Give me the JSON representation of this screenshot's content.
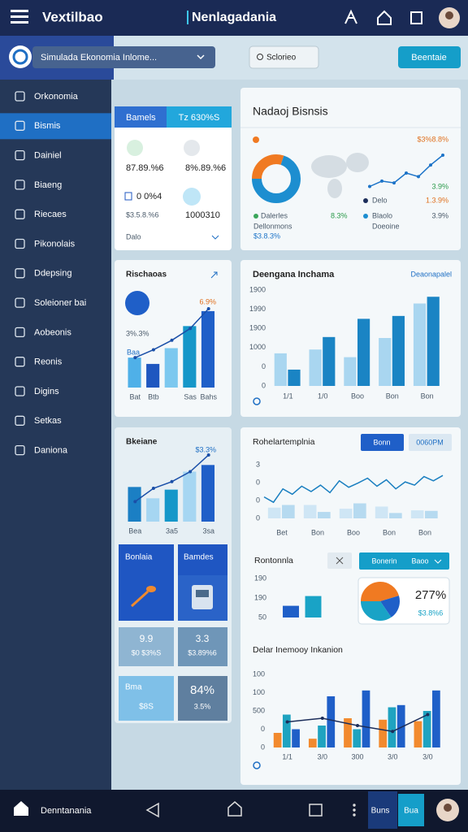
{
  "topbar": {
    "app_name": "Vextilbao",
    "title": "Nenlagadania"
  },
  "toolbar": {
    "dropdown": "Simulada Ekonomia Inlome...",
    "search": "Sclorieo",
    "action": "Beentaie"
  },
  "sidebar": {
    "items": [
      "Orkonomia",
      "Bismis",
      "Dainiel",
      "Biaeng",
      "Riecaes",
      "Pikonolais",
      "Ddepsing",
      "Soleioner bai",
      "Aobeonis",
      "Reonis",
      "Digins",
      "Setkas",
      "Daniona"
    ],
    "active": 1
  },
  "summary": {
    "tabs": [
      "Bamels",
      "Tz 630%S"
    ],
    "stats": [
      "87.89.%6",
      "8%.89.%6",
      "0 0%4",
      "$3.5.8.%6",
      "1000310"
    ],
    "footer": "Dalo"
  },
  "overview": {
    "title": "Nadaoj Bisnsis",
    "headline": "$3%8.8%",
    "donut": {
      "values": [
        30,
        70
      ],
      "colors": [
        "#f07a22",
        "#1d8ed0"
      ]
    },
    "line": {
      "color": "#1d74c8",
      "ylim": [
        0,
        100
      ],
      "values": [
        10,
        22,
        18,
        40,
        32,
        58,
        80
      ]
    },
    "labels": [
      "Dalerles",
      "8.3%",
      "Delo",
      "Blaolo",
      "3.9%",
      "1.3.9%",
      "3.9%",
      "Dellonmons",
      "$3.8.3%",
      "Doeoine"
    ]
  },
  "revenue": {
    "title": "Rischaoas",
    "notes": [
      "6.9%",
      "3%.3%",
      "Baa"
    ],
    "chart": {
      "ylim": [
        0,
        100
      ],
      "categories": [
        "Bat",
        "Btb",
        null,
        "Sas",
        "Bahs"
      ],
      "series": [
        {
          "colors": [
            "#4fb0e8",
            "#1f57c0",
            "#7cc8ef",
            "#1597c9",
            "#1f5fc8"
          ],
          "values": [
            38,
            30,
            50,
            78,
            97
          ]
        }
      ],
      "line": {
        "color": "#1a4fa8",
        "values": [
          38,
          48,
          60,
          75,
          100
        ]
      }
    }
  },
  "income": {
    "title": "Deengana Inchama",
    "link": "Deaonapalel",
    "chart": {
      "ylim": [
        0,
        100
      ],
      "y_labels": [
        "1900",
        "1990",
        "1900",
        "1000",
        "0",
        "0"
      ],
      "categories": [
        "1/1",
        "1/0",
        "Boo",
        "Bon",
        "Bon"
      ],
      "series": [
        {
          "color": "#a9d6f0",
          "values": [
            34,
            38,
            30,
            50,
            86
          ]
        },
        {
          "color": "#1a84c4",
          "values": [
            17,
            51,
            70,
            73,
            93
          ]
        }
      ]
    }
  },
  "trend": {
    "title": "Bkeiane",
    "note": "$3.3%",
    "chart": {
      "ylim": [
        0,
        100
      ],
      "categories": [
        "Bea",
        null,
        "3a5",
        null,
        "3sa"
      ],
      "series": [
        {
          "colors": [
            "#1b7fc4",
            "#a6d6f2",
            "#1597c9",
            "#a6d6f2",
            "#1f5fc8"
          ],
          "values": [
            52,
            35,
            48,
            75,
            85
          ]
        }
      ],
      "line": {
        "color": "#1a4fa8",
        "values": [
          30,
          50,
          60,
          75,
          100
        ]
      }
    }
  },
  "tiles": [
    [
      "Bonlaia"
    ],
    [
      "Bamdes"
    ],
    [
      "9.9",
      "$0 $3%S"
    ],
    [
      "3.3",
      "$3.89%6"
    ],
    [
      "Bma",
      "$8S"
    ],
    [
      "84%",
      "3.5%"
    ]
  ],
  "timeline": {
    "title": "Rohelartemplnia",
    "buttons": [
      "Bonn",
      "0060PM"
    ],
    "chart": {
      "ylim": [
        0,
        100
      ],
      "y_labels": [
        "3",
        "0",
        "0",
        "0"
      ],
      "categories": [
        "Bet",
        "Bon",
        "Boo",
        "Bon",
        "Bon"
      ],
      "series": [
        {
          "color": "#cfe6f5",
          "values": [
            20,
            25,
            18,
            22,
            15
          ]
        },
        {
          "color": "#b6daf0",
          "values": [
            25,
            12,
            28,
            10,
            14
          ]
        }
      ],
      "line": {
        "color": "#1a7fc0",
        "values": [
          40,
          30,
          55,
          45,
          60,
          50,
          62,
          48,
          70,
          58,
          66,
          75,
          60,
          72,
          55,
          68,
          62,
          78,
          70,
          80
        ]
      }
    }
  },
  "breakdown": {
    "title": "Rontonnla",
    "dropdown": [
      "Bonerin",
      "Baoo"
    ],
    "chart": {
      "ylim": [
        0,
        100
      ],
      "y_labels": [
        "190",
        "190",
        "50"
      ],
      "categories": [
        null,
        null
      ],
      "series": [
        {
          "colors": [
            "#1f5fc8",
            "#19a3c6"
          ],
          "values": [
            30,
            55
          ]
        }
      ]
    },
    "pie": {
      "values": [
        45,
        20,
        35
      ],
      "colors": [
        "#f07a22",
        "#1f5fc8",
        "#19a3c6"
      ]
    },
    "value": "277%",
    "sub": "$3.8%6"
  },
  "inventory": {
    "title": "Delar Inemooy Inkanion",
    "chart": {
      "ylim": [
        0,
        100
      ],
      "y_labels": [
        "100",
        "100",
        "500",
        "0",
        "0"
      ],
      "categories": [
        "1/1",
        "3/0",
        "300",
        "3/0",
        "3/0"
      ],
      "series": [
        {
          "color": "#f28a2e",
          "values": [
            20,
            12,
            40,
            38,
            36
          ]
        },
        {
          "color": "#1fa3c0",
          "values": [
            45,
            30,
            25,
            55,
            50
          ]
        },
        {
          "color": "#1f5fc8",
          "values": [
            25,
            70,
            78,
            58,
            78
          ]
        }
      ],
      "line": {
        "color": "#1b2d5a",
        "values": [
          35,
          40,
          30,
          22,
          45
        ]
      }
    }
  },
  "bottom_nav": {
    "label": "Denntanania",
    "buttons": [
      "Buns",
      "Bua"
    ]
  }
}
